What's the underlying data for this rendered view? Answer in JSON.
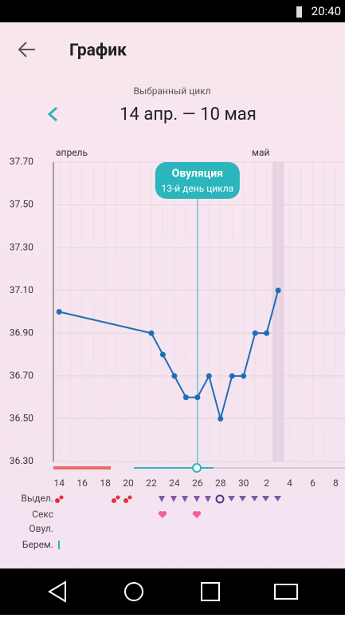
{
  "status_bar": {
    "time": "20:40"
  },
  "header": {
    "title": "График"
  },
  "cycle": {
    "caption": "Выбранный цикл",
    "range": "14 апр. — 10 мая"
  },
  "chart_data": {
    "type": "line",
    "months": [
      "апрель",
      "май"
    ],
    "x": [
      14,
      22,
      23,
      24,
      25,
      26,
      27,
      28,
      29,
      30,
      31,
      32,
      33
    ],
    "series": [
      {
        "color": "#1f6eb4",
        "values": [
          37.0,
          36.9,
          36.8,
          36.7,
          36.6,
          36.6,
          36.7,
          36.5,
          36.7,
          36.7,
          36.9,
          36.9,
          37.1
        ]
      }
    ],
    "xlim": [
      13.5,
      38.8
    ],
    "xticks": [
      14,
      16,
      18,
      20,
      22,
      24,
      26,
      28,
      30,
      {
        "value": 32,
        "label": "2"
      },
      {
        "value": 34,
        "label": "4"
      },
      {
        "value": 36,
        "label": "6"
      },
      {
        "value": 38,
        "label": "8"
      }
    ],
    "ylim": [
      36.3,
      37.7
    ],
    "yticks": [
      {
        "value": 36.3,
        "label": "36.30"
      },
      {
        "value": 36.5,
        "label": "36.50"
      },
      {
        "value": 36.7,
        "label": "36.70"
      },
      {
        "value": 36.9,
        "label": "36.90"
      },
      {
        "value": 37.1,
        "label": "37.10"
      },
      {
        "value": 37.3,
        "label": "37.30"
      },
      {
        "value": 37.5,
        "label": "37.50"
      },
      {
        "value": 37.7,
        "label": "37.70"
      }
    ],
    "grid": true,
    "ovulation": {
      "x": 26,
      "label": "Овуляция",
      "sublabel": "13-й день цикла"
    },
    "highlight_x": 33
  },
  "rows": [
    "Выдел.",
    "Секс",
    "Овул.",
    "Берем."
  ]
}
